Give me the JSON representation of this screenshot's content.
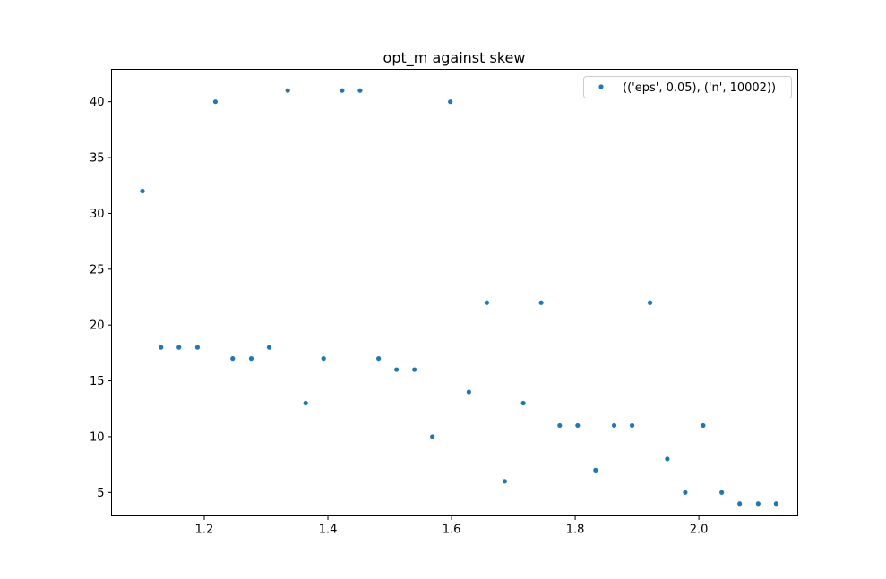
{
  "chart_data": {
    "type": "scatter",
    "title": "opt_m against skew",
    "xlabel": "",
    "ylabel": "",
    "xlim": [
      1.05,
      2.16
    ],
    "ylim": [
      2.9,
      42.9
    ],
    "xticks": [
      1.2,
      1.4,
      1.6,
      1.8,
      2.0
    ],
    "xtick_labels": [
      "1.2",
      "1.4",
      "1.6",
      "1.8",
      "2.0"
    ],
    "yticks": [
      5,
      10,
      15,
      20,
      25,
      30,
      35,
      40
    ],
    "ytick_labels": [
      "5",
      "10",
      "15",
      "20",
      "25",
      "30",
      "35",
      "40"
    ],
    "grid": false,
    "legend_position": "top-right",
    "series": [
      {
        "name": "(('eps', 0.05), ('n', 10002))",
        "color": "#1f77b4",
        "marker": "circle",
        "x": [
          1.1,
          1.13,
          1.159,
          1.189,
          1.218,
          1.246,
          1.276,
          1.305,
          1.335,
          1.364,
          1.393,
          1.423,
          1.452,
          1.482,
          1.511,
          1.54,
          1.569,
          1.598,
          1.628,
          1.657,
          1.686,
          1.716,
          1.745,
          1.775,
          1.804,
          1.833,
          1.863,
          1.892,
          1.921,
          1.949,
          1.978,
          2.007,
          2.037,
          2.066,
          2.096,
          2.125
        ],
        "y": [
          32,
          18,
          18,
          18,
          40,
          17,
          17,
          18,
          41,
          13,
          17,
          41,
          41,
          17,
          16,
          16,
          10,
          40,
          14,
          22,
          6,
          13,
          22,
          11,
          11,
          7,
          11,
          11,
          22,
          8,
          5,
          11,
          5,
          4,
          4,
          4
        ]
      }
    ]
  }
}
